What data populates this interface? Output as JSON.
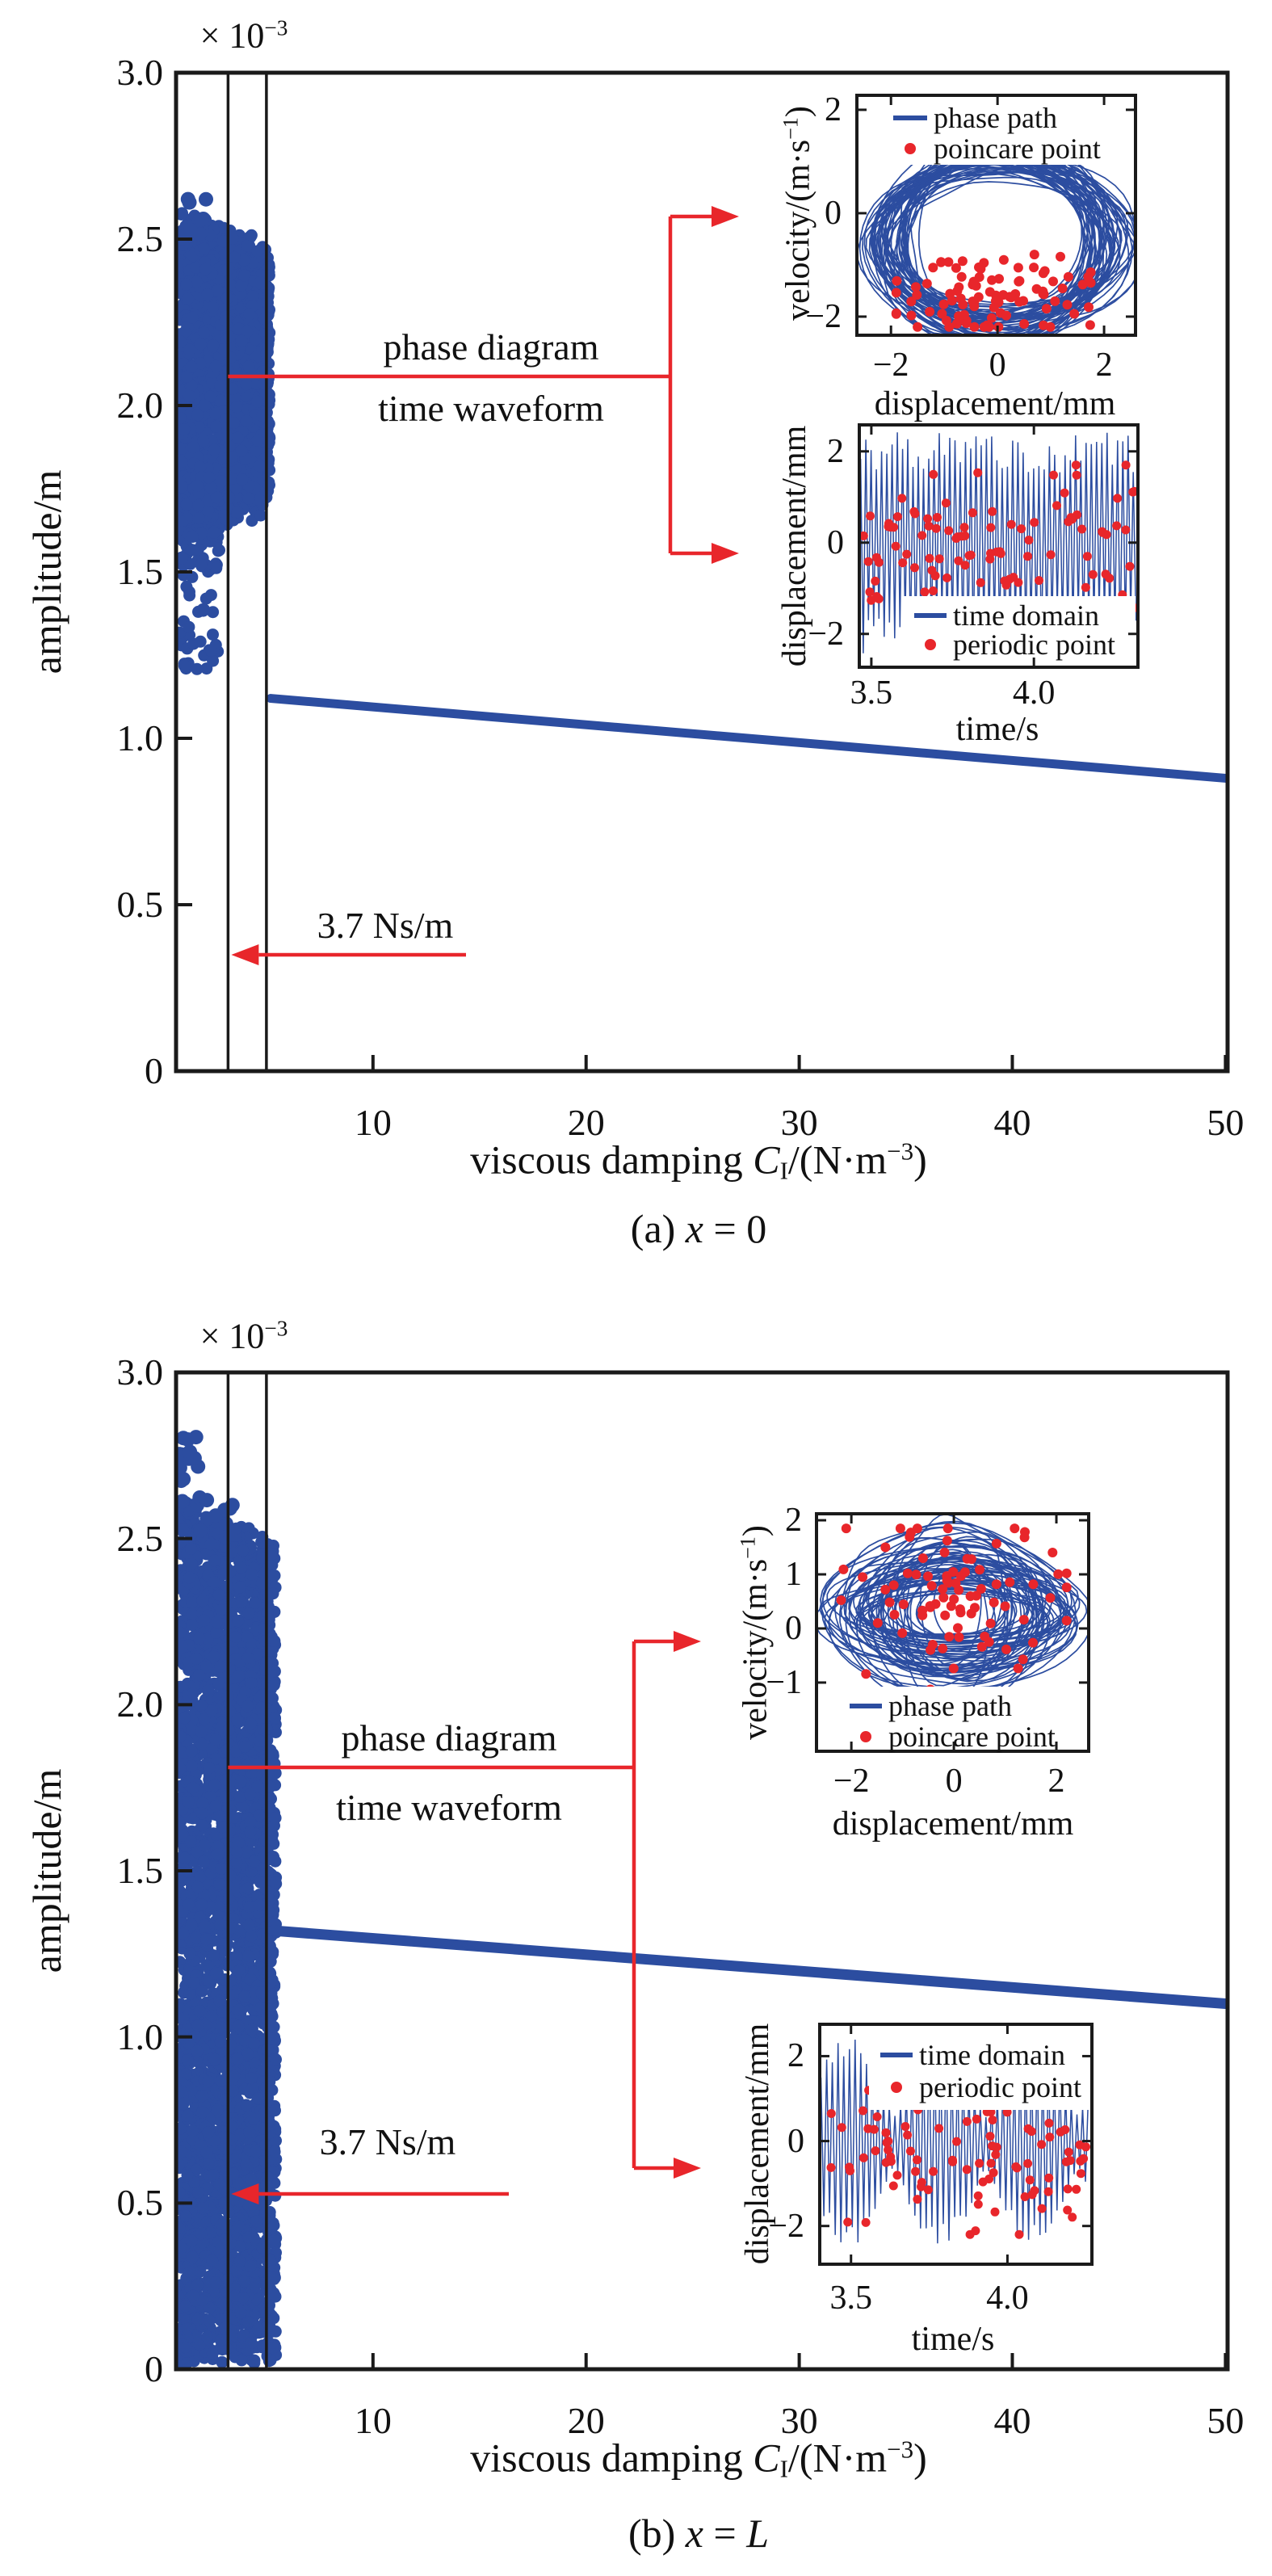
{
  "colors": {
    "series_blue": "#2c4da0",
    "annotation_red": "#e8262b",
    "axis_black": "#1a1a1a",
    "text_black": "#111111",
    "background": "#ffffff"
  },
  "chart_data": [
    {
      "id": "a",
      "type": "scatter",
      "caption_parts": [
        [
          "(a) ",
          ""
        ],
        [
          "x",
          "i"
        ],
        [
          " = 0",
          ""
        ]
      ],
      "xlabel_parts": [
        [
          "viscous damping ",
          ""
        ],
        [
          "C",
          "i"
        ],
        [
          "I",
          "sub"
        ],
        [
          "/(N·m",
          ""
        ],
        [
          "−3",
          "sup"
        ],
        [
          ")",
          ""
        ]
      ],
      "ylabel": "amplitude/m",
      "scale_label_parts": [
        [
          "× 10",
          ""
        ],
        [
          "−3",
          "sup"
        ]
      ],
      "xlim": [
        0.76,
        50.1
      ],
      "ylim_milli": [
        0,
        3.0
      ],
      "xticks": [
        10,
        20,
        30,
        40,
        50
      ],
      "ytick_values_milli": [
        3.0,
        2.5,
        2.0,
        1.5,
        1.0,
        0.5,
        0
      ],
      "ytick_labels": [
        "3.0",
        "2.5",
        "2.0",
        "1.5",
        "1.0",
        "0.5",
        "0"
      ],
      "marker_lines_x": [
        3.2,
        5.0
      ],
      "chaotic_cluster": {
        "x_range": [
          0.9,
          5.15
        ],
        "amp_top_milli": [
          2.56,
          2.47
        ],
        "amp_bottom_milli": [
          1.62,
          1.72
        ],
        "count": 2400,
        "tail": {
          "x_range": [
            0.9,
            2.8
          ],
          "amp_range_milli": [
            1.2,
            1.62
          ],
          "count": 80
        },
        "outliers": [
          {
            "x_range": [
              0.9,
              2.2
            ],
            "amp_range_milli": [
              2.5,
              2.62
            ],
            "count": 12
          }
        ]
      },
      "branch_line": {
        "x": [
          5.2,
          50
        ],
        "amp_milli": [
          1.12,
          0.88
        ]
      },
      "callout_labels": [
        "phase diagram",
        "time waveform"
      ],
      "damping_annotation": {
        "label": "3.7 Ns/m",
        "points_to_x": 3.2
      },
      "insets": {
        "phase": {
          "ylabel_parts": [
            [
              "velocity/(m·s",
              ""
            ],
            [
              "−1",
              "sup"
            ],
            [
              ")",
              ""
            ]
          ],
          "xlabel": "displacement/mm",
          "xlim": [
            -2.64,
            2.59
          ],
          "ylim": [
            -2.36,
            2.28
          ],
          "xticks": [
            -2,
            0,
            2
          ],
          "xtick_labels": [
            "−2",
            "0",
            "2"
          ],
          "yticks": [
            2,
            0,
            -2
          ],
          "ytick_labels": [
            "2",
            "0",
            "−2"
          ],
          "legend": [
            {
              "label": "phase path",
              "marker": "line"
            },
            {
              "label": "poincare point",
              "marker": "dot"
            }
          ],
          "attractor": {
            "kind": "ring",
            "cx": 0,
            "cy": -0.55,
            "rx_range": [
              1.7,
              2.45
            ],
            "ry_range": [
              1.35,
              1.85
            ],
            "loops": 55
          },
          "poincare_points": {
            "count": 95,
            "cx": -0.1,
            "sx": 0.95,
            "cy": -1.6,
            "sy": 0.45,
            "clip": [
              -1.9,
              1.75,
              -2.2,
              -0.8
            ]
          }
        },
        "time": {
          "ylabel": "displacement/mm",
          "xlabel": "time/s",
          "xlim": [
            3.463,
            4.32
          ],
          "ylim": [
            -2.73,
            2.58
          ],
          "xticks": [
            3.5,
            4.0
          ],
          "xtick_labels": [
            "3.5",
            "4.0"
          ],
          "yticks": [
            2,
            0,
            -2
          ],
          "ytick_labels": [
            "2",
            "0",
            "−2"
          ],
          "legend": [
            {
              "label": "time domain",
              "marker": "line"
            },
            {
              "label": "periodic point",
              "marker": "dot"
            }
          ],
          "legend_pos": "bottom",
          "signal": {
            "freq": 62,
            "amp_base": 1.95,
            "amp_var": 0.5
          },
          "periodic_points": {
            "count": 110,
            "cx": 0,
            "sx": 99,
            "cy": -0.15,
            "sy": 0.95,
            "clip": [
              3.475,
              4.31,
              -2.1,
              1.7
            ]
          }
        }
      }
    },
    {
      "id": "b",
      "type": "scatter",
      "caption_parts": [
        [
          "(b) ",
          ""
        ],
        [
          "x",
          "i"
        ],
        [
          " = ",
          ""
        ],
        [
          "L",
          "i"
        ]
      ],
      "xlabel_parts": [
        [
          "viscous damping ",
          ""
        ],
        [
          "C",
          "i"
        ],
        [
          "I",
          "sub"
        ],
        [
          "/(N·m",
          ""
        ],
        [
          "−3",
          "sup"
        ],
        [
          ")",
          ""
        ]
      ],
      "ylabel": "amplitude/m",
      "scale_label_parts": [
        [
          "× 10",
          ""
        ],
        [
          "−3",
          "sup"
        ]
      ],
      "xlim": [
        0.76,
        50.1
      ],
      "ylim_milli": [
        0,
        3.0
      ],
      "xticks": [
        10,
        20,
        30,
        40,
        50
      ],
      "ytick_values_milli": [
        3.0,
        2.5,
        2.0,
        1.5,
        1.0,
        0.5,
        0
      ],
      "ytick_labels": [
        "3.0",
        "2.5",
        "2.0",
        "1.5",
        "1.0",
        "0.5",
        "0"
      ],
      "marker_lines_x": [
        3.2,
        5.0
      ],
      "chaotic_cluster": {
        "x_range": [
          0.9,
          5.45
        ],
        "amp_top_milli": [
          2.6,
          2.5
        ],
        "amp_bottom_milli": [
          0.02,
          0.02
        ],
        "count": 3400,
        "tail": {
          "x_range": [
            0.9,
            1.6
          ],
          "amp_range_milli": [
            2.45,
            2.6
          ],
          "count": 20
        },
        "outliers": [
          {
            "x_range": [
              0.9,
              1.9
            ],
            "amp_range_milli": [
              2.55,
              2.82
            ],
            "count": 16
          },
          {
            "x_range": [
              1.9,
              3.6
            ],
            "amp_range_milli": [
              2.5,
              2.62
            ],
            "count": 10
          }
        ]
      },
      "branch_line": {
        "x": [
          5.3,
          50
        ],
        "amp_milli": [
          1.32,
          1.1
        ]
      },
      "callout_labels": [
        "phase diagram",
        "time waveform"
      ],
      "damping_annotation": {
        "label": "3.7 Ns/m",
        "points_to_x": 3.2
      },
      "insets": {
        "phase": {
          "ylabel_parts": [
            [
              "velocity/(m·s",
              ""
            ],
            [
              "−1",
              "sup"
            ],
            [
              ")",
              ""
            ]
          ],
          "xlabel": "displacement/mm",
          "xlim": [
            -2.68,
            2.63
          ],
          "ylim": [
            -2.27,
            2.12
          ],
          "xticks": [
            -2,
            0,
            2
          ],
          "xtick_labels": [
            "−2",
            "0",
            "2"
          ],
          "yticks": [
            2,
            1,
            0,
            -1
          ],
          "ytick_labels": [
            "2",
            "1",
            "0",
            "−1"
          ],
          "legend": [
            {
              "label": "phase path",
              "marker": "line"
            },
            {
              "label": "poincare point",
              "marker": "dot"
            }
          ],
          "attractor": {
            "kind": "disc",
            "cx": 0,
            "cy": 0.3,
            "rx_range": [
              0.5,
              2.45
            ],
            "ry_range": [
              0.45,
              1.6
            ],
            "loops": 60
          },
          "poincare_points": {
            "count": 85,
            "cx": -0.05,
            "sx": 1.0,
            "cy": 0.5,
            "sy": 0.7,
            "clip": [
              -2.2,
              2.2,
              -1.2,
              1.85
            ]
          }
        },
        "time": {
          "ylabel": "displacement/mm",
          "xlabel": "time/s",
          "xlim": [
            3.4,
            4.27
          ],
          "ylim": [
            -2.9,
            2.75
          ],
          "xticks": [
            3.5,
            4.0
          ],
          "xtick_labels": [
            "3.5",
            "4.0"
          ],
          "yticks": [
            2,
            0,
            -2
          ],
          "ytick_labels": [
            "2",
            "0",
            "−2"
          ],
          "legend": [
            {
              "label": "time domain",
              "marker": "line"
            },
            {
              "label": "periodic point",
              "marker": "dot"
            }
          ],
          "legend_pos": "top",
          "signal": {
            "freq": 55,
            "amp_base": 1.35,
            "amp_var": 1.0,
            "beat_freq": 3.4
          },
          "periodic_points": {
            "count": 95,
            "cx": 0,
            "sx": 99,
            "cy": -0.3,
            "sy": 0.85,
            "clip": [
              3.41,
              4.26,
              -2.2,
              2.05
            ]
          }
        }
      }
    }
  ]
}
